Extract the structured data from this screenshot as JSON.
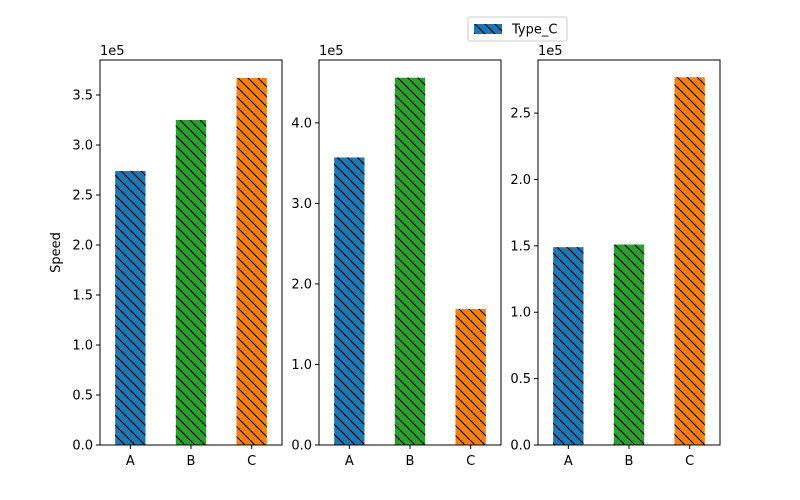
{
  "chart_data": [
    {
      "type": "bar",
      "categories": [
        "A",
        "B",
        "C"
      ],
      "values": [
        274000,
        325000,
        367000
      ],
      "colors": [
        "#1f77b4",
        "#2ca02c",
        "#ff7f0e"
      ],
      "ylabel": "Speed",
      "ylim": [
        0,
        385000
      ],
      "scale_label": "1e5",
      "yticks": [
        0,
        50000,
        100000,
        150000,
        200000,
        250000,
        300000,
        350000
      ],
      "ytick_labels": [
        "0.0",
        "0.5",
        "1.0",
        "1.5",
        "2.0",
        "2.5",
        "3.0",
        "3.5"
      ],
      "hatch": "\\\\"
    },
    {
      "type": "bar",
      "categories": [
        "A",
        "B",
        "C"
      ],
      "values": [
        357000,
        456000,
        169000
      ],
      "colors": [
        "#1f77b4",
        "#2ca02c",
        "#ff7f0e"
      ],
      "ylabel": "",
      "ylim": [
        0,
        478000
      ],
      "scale_label": "1e5",
      "yticks": [
        0,
        100000,
        200000,
        300000,
        400000
      ],
      "ytick_labels": [
        "0.0",
        "1.0",
        "2.0",
        "3.0",
        "4.0"
      ],
      "hatch": "\\\\"
    },
    {
      "type": "bar",
      "categories": [
        "A",
        "B",
        "C"
      ],
      "values": [
        149000,
        151000,
        277000
      ],
      "colors": [
        "#1f77b4",
        "#2ca02c",
        "#ff7f0e"
      ],
      "ylabel": "",
      "ylim": [
        0,
        290000
      ],
      "scale_label": "1e5",
      "yticks": [
        0,
        50000,
        100000,
        150000,
        200000,
        250000
      ],
      "ytick_labels": [
        "0.0",
        "0.5",
        "1.0",
        "1.5",
        "2.0",
        "2.5"
      ],
      "hatch": "\\\\"
    }
  ],
  "legend": {
    "placement": "top-center-right",
    "label": "Type_C",
    "color": "#1f77b4"
  }
}
